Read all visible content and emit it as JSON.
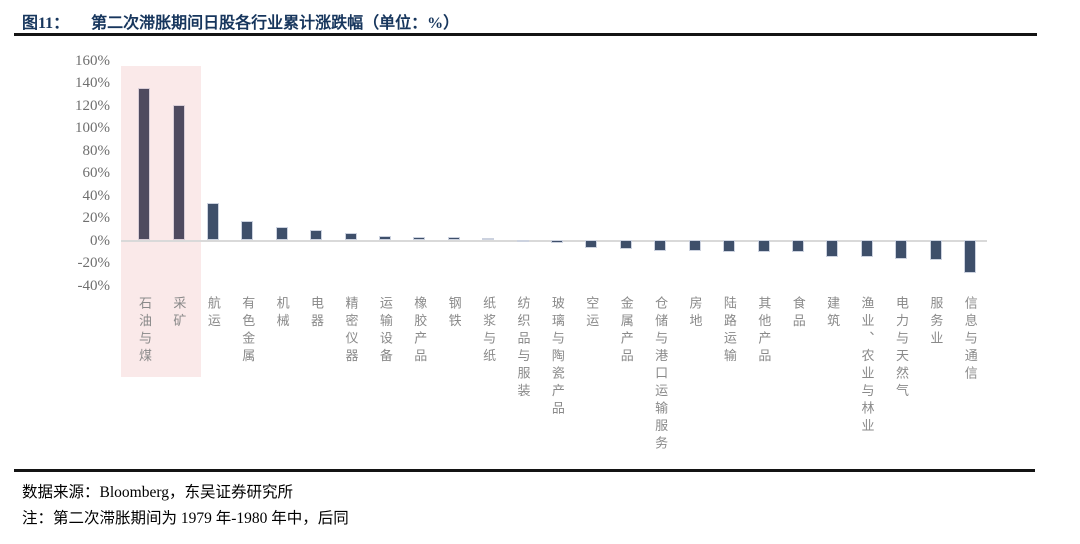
{
  "figure": {
    "label": "图11：",
    "title": "第二次滞胀期间日股各行业累计涨跌幅（单位：%）"
  },
  "chart_data": {
    "type": "bar",
    "title": "第二次滞胀期间日股各行业累计涨跌幅",
    "unit": "%",
    "categories": [
      "石油与煤",
      "采矿",
      "航运",
      "有色金属",
      "机械",
      "电器",
      "精密仪器",
      "运输设备",
      "橡胶产品",
      "钢铁",
      "纸浆与纸",
      "纺织品与服装",
      "玻璃与陶瓷产品",
      "空运",
      "金属产品",
      "仓储与港口运输服务",
      "房地",
      "陆路运输",
      "其他产品",
      "食品",
      "建筑",
      "渔业、农业与林业",
      "电力与天然气",
      "服务业",
      "信息与通信"
    ],
    "values": [
      135,
      120,
      33,
      17,
      12,
      9,
      6,
      4,
      3,
      3,
      2,
      -1,
      -3,
      -7,
      -8,
      -9.5,
      -9.5,
      -10.5,
      -11,
      -11,
      -15,
      -15,
      -16.5,
      -17.5,
      -29.5
    ],
    "ylim": [
      -40,
      160
    ],
    "ytick_labels": [
      "160%",
      "140%",
      "120%",
      "100%",
      "80%",
      "60%",
      "40%",
      "20%",
      "0%",
      "-20%",
      "-40%"
    ],
    "grid": false,
    "legend": "none",
    "bar_color": "#3e4f6a",
    "highlight_first_n": 2,
    "highlight_bar_color": "#4e4a5f",
    "highlight_region_color": "#fae9e9",
    "axis_line_color": "#d9d9d9"
  },
  "footer": {
    "source": "数据来源：Bloomberg，东吴证券研究所",
    "note": "注：第二次滞胀期间为 1979 年-1980 年中，后同"
  }
}
